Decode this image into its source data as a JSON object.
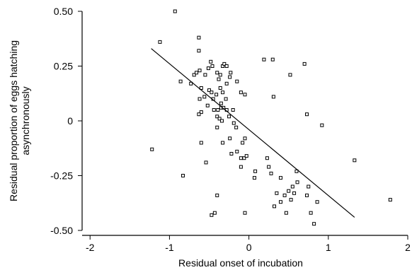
{
  "chart_data": {
    "type": "scatter",
    "xlabel": "Residual onset of incubation",
    "ylabel_lines": [
      "Residual proportion of eggs hatching",
      "asynchronously"
    ],
    "xlim": [
      -2.1,
      2.0
    ],
    "ylim": [
      -0.5,
      0.5
    ],
    "xticks": [
      -2,
      -1,
      0,
      1,
      2
    ],
    "xtick_labels": [
      "-2",
      "-1",
      "0",
      "1",
      "2"
    ],
    "yticks": [
      0.5,
      0.25,
      0,
      -0.25,
      -0.5
    ],
    "ytick_labels": [
      "0.50",
      "0.25",
      "0",
      "-0.25",
      "-0.50"
    ],
    "fit_line": {
      "x": [
        -1.23,
        1.33
      ],
      "y": [
        0.33,
        -0.44
      ]
    },
    "points": [
      [
        -0.93,
        0.5
      ],
      [
        -1.12,
        0.36
      ],
      [
        -0.63,
        0.38
      ],
      [
        -0.63,
        0.32
      ],
      [
        -0.86,
        0.18
      ],
      [
        -0.73,
        0.17
      ],
      [
        -0.69,
        0.21
      ],
      [
        -0.66,
        0.22
      ],
      [
        -0.62,
        0.23
      ],
      [
        -0.55,
        0.21
      ],
      [
        -0.51,
        0.24
      ],
      [
        -0.48,
        0.27
      ],
      [
        -0.46,
        0.25
      ],
      [
        -0.4,
        0.22
      ],
      [
        -0.36,
        0.21
      ],
      [
        -0.33,
        0.25
      ],
      [
        -0.31,
        0.26
      ],
      [
        -0.28,
        0.25
      ],
      [
        -0.24,
        0.2
      ],
      [
        -0.23,
        0.22
      ],
      [
        -0.28,
        0.17
      ],
      [
        -0.38,
        0.19
      ],
      [
        -0.6,
        0.15
      ],
      [
        -0.56,
        0.11
      ],
      [
        -0.5,
        0.14
      ],
      [
        -0.47,
        0.13
      ],
      [
        -0.41,
        0.12
      ],
      [
        -0.36,
        0.15
      ],
      [
        -0.33,
        0.13
      ],
      [
        -0.29,
        0.1
      ],
      [
        -0.35,
        0.08
      ],
      [
        -0.45,
        0.1
      ],
      [
        -0.62,
        0.1
      ],
      [
        -0.6,
        0.04
      ],
      [
        -0.63,
        0.03
      ],
      [
        -0.52,
        0.07
      ],
      [
        -0.44,
        0.05
      ],
      [
        -0.39,
        0.05
      ],
      [
        -0.35,
        0.06
      ],
      [
        -0.32,
        0.06
      ],
      [
        -0.28,
        0.05
      ],
      [
        -0.25,
        0.02
      ],
      [
        -0.2,
        0.05
      ],
      [
        -0.15,
        0.18
      ],
      [
        -0.1,
        0.13
      ],
      [
        -0.05,
        0.12
      ],
      [
        -0.4,
        0.02
      ],
      [
        -0.37,
        0.01
      ],
      [
        -0.34,
        0.0
      ],
      [
        -0.4,
        -0.03
      ],
      [
        -0.19,
        -0.01
      ],
      [
        -0.16,
        -0.03
      ],
      [
        -0.24,
        -0.08
      ],
      [
        -0.6,
        -0.1
      ],
      [
        -0.33,
        -0.1
      ],
      [
        -0.08,
        -0.1
      ],
      [
        -0.05,
        -0.08
      ],
      [
        -0.15,
        -0.14
      ],
      [
        -0.22,
        -0.15
      ],
      [
        -0.1,
        -0.17
      ],
      [
        -0.06,
        -0.17
      ],
      [
        -0.1,
        -0.21
      ],
      [
        -0.03,
        -0.16
      ],
      [
        -0.54,
        -0.19
      ],
      [
        -0.83,
        -0.25
      ],
      [
        -1.22,
        -0.13
      ],
      [
        -0.4,
        -0.34
      ],
      [
        -0.43,
        -0.42
      ],
      [
        -0.47,
        -0.43
      ],
      [
        -0.05,
        -0.42
      ],
      [
        0.08,
        -0.23
      ],
      [
        0.07,
        -0.26
      ],
      [
        0.23,
        -0.17
      ],
      [
        0.25,
        -0.21
      ],
      [
        0.28,
        -0.24
      ],
      [
        0.4,
        -0.26
      ],
      [
        0.35,
        -0.33
      ],
      [
        0.4,
        -0.37
      ],
      [
        0.45,
        -0.34
      ],
      [
        0.5,
        -0.32
      ],
      [
        0.55,
        -0.3
      ],
      [
        0.53,
        -0.36
      ],
      [
        0.57,
        -0.33
      ],
      [
        0.61,
        -0.28
      ],
      [
        0.6,
        -0.23
      ],
      [
        0.47,
        -0.42
      ],
      [
        0.32,
        -0.39
      ],
      [
        0.75,
        -0.3
      ],
      [
        0.73,
        -0.34
      ],
      [
        0.78,
        -0.42
      ],
      [
        0.86,
        -0.37
      ],
      [
        0.82,
        -0.47
      ],
      [
        0.19,
        0.28
      ],
      [
        0.3,
        0.28
      ],
      [
        0.52,
        0.21
      ],
      [
        0.31,
        0.11
      ],
      [
        0.7,
        0.26
      ],
      [
        0.73,
        0.03
      ],
      [
        0.92,
        -0.02
      ],
      [
        1.33,
        -0.18
      ],
      [
        1.78,
        -0.36
      ]
    ]
  }
}
